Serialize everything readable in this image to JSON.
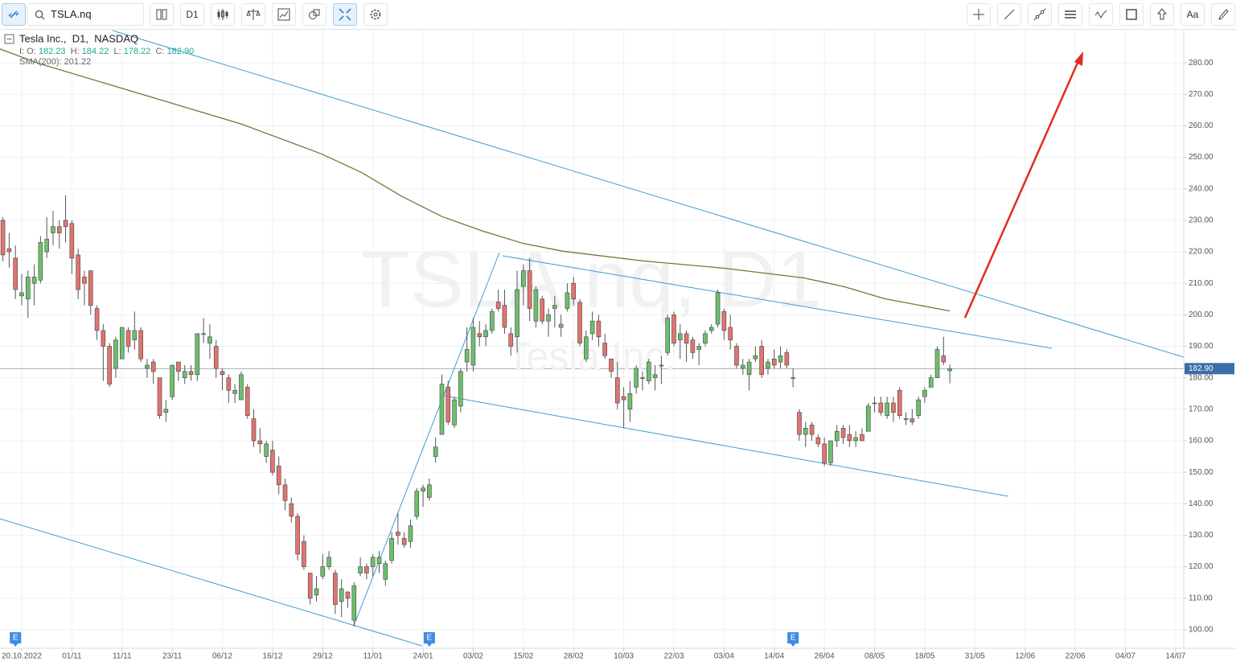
{
  "toolbar": {
    "symbol": "TSLA.nq",
    "timeframe": "D1",
    "text_tool": "Aa"
  },
  "legend": {
    "title": "Tesla Inc.,  D1,  NASDAQ",
    "o_label": "I: O:",
    "o": "182.23",
    "h_label": "H:",
    "h": "184.22",
    "l_label": "L:",
    "l": "178.22",
    "c_label": "C:",
    "c": "182.90",
    "sma_label": "SMA(200):",
    "sma": "201.22"
  },
  "watermark": {
    "symbol": "TSLA.nq, D1",
    "name": "Tesla Inc."
  },
  "chart_data": {
    "type": "candlestick",
    "up_color": "#6cbf6c",
    "down_color": "#e07470",
    "grid": true,
    "xlim": [
      -3.46,
      185.3
    ],
    "ylim": [
      94.1,
      290.5
    ],
    "xticks": [
      {
        "value": 0,
        "label": "20.10.2022"
      },
      {
        "value": 8,
        "label": "01/11"
      },
      {
        "value": 16,
        "label": "11/11"
      },
      {
        "value": 24,
        "label": "23/11"
      },
      {
        "value": 32,
        "label": "06/12"
      },
      {
        "value": 40,
        "label": "16/12"
      },
      {
        "value": 48,
        "label": "29/12"
      },
      {
        "value": 56,
        "label": "11/01"
      },
      {
        "value": 64,
        "label": "24/01"
      },
      {
        "value": 72,
        "label": "03/02"
      },
      {
        "value": 80,
        "label": "15/02"
      },
      {
        "value": 88,
        "label": "28/02"
      },
      {
        "value": 96,
        "label": "10/03"
      },
      {
        "value": 104,
        "label": "22/03"
      },
      {
        "value": 112,
        "label": "03/04"
      },
      {
        "value": 120,
        "label": "14/04"
      },
      {
        "value": 128,
        "label": "26/04"
      },
      {
        "value": 136,
        "label": "08/05"
      },
      {
        "value": 144,
        "label": "18/05"
      },
      {
        "value": 152,
        "label": "31/05"
      },
      {
        "value": 160,
        "label": "12/06"
      },
      {
        "value": 168,
        "label": "22/06"
      },
      {
        "value": 176,
        "label": "04/07"
      },
      {
        "value": 184,
        "label": "14/07"
      }
    ],
    "yticks": [
      {
        "value": 100,
        "label": "100.00"
      },
      {
        "value": 110,
        "label": "110.00"
      },
      {
        "value": 120,
        "label": "120.00"
      },
      {
        "value": 130,
        "label": "130.00"
      },
      {
        "value": 140,
        "label": "140.00"
      },
      {
        "value": 150,
        "label": "150.00"
      },
      {
        "value": 160,
        "label": "160.00"
      },
      {
        "value": 170,
        "label": "170.00"
      },
      {
        "value": 180,
        "label": "180.00"
      },
      {
        "value": 190,
        "label": "190.00"
      },
      {
        "value": 200,
        "label": "200.00"
      },
      {
        "value": 210,
        "label": "210.00"
      },
      {
        "value": 220,
        "label": "220.00"
      },
      {
        "value": 230,
        "label": "230.00"
      },
      {
        "value": 240,
        "label": "240.00"
      },
      {
        "value": 250,
        "label": "250.00"
      },
      {
        "value": 260,
        "label": "260.00"
      },
      {
        "value": 270,
        "label": "270.00"
      },
      {
        "value": 280,
        "label": "280.00"
      }
    ],
    "last_price": {
      "value": 182.9,
      "label": "182.90"
    },
    "x": [
      -3,
      -2,
      -1,
      0,
      1,
      2,
      3,
      4,
      5,
      6,
      7,
      8,
      9,
      10,
      11,
      12,
      13,
      14,
      15,
      16,
      17,
      18,
      19,
      20,
      21,
      22,
      23,
      24,
      25,
      26,
      27,
      28,
      29,
      30,
      31,
      32,
      33,
      34,
      35,
      36,
      37,
      38,
      39,
      40,
      41,
      42,
      43,
      44,
      45,
      46,
      47,
      48,
      49,
      50,
      51,
      52,
      53,
      54,
      55,
      56,
      57,
      58,
      59,
      60,
      61,
      62,
      63,
      64,
      65,
      66,
      67,
      68,
      69,
      70,
      71,
      72,
      73,
      74,
      75,
      76,
      77,
      78,
      79,
      80,
      81,
      82,
      83,
      84,
      85,
      86,
      87,
      88,
      89,
      90,
      91,
      92,
      93,
      94,
      95,
      96,
      97,
      98,
      99,
      100,
      101,
      102,
      103,
      104,
      105,
      106,
      107,
      108,
      109,
      110,
      111,
      112,
      113,
      114,
      115,
      116,
      117,
      118,
      119,
      120,
      121,
      122,
      123,
      124,
      125,
      126,
      127,
      128,
      129,
      130,
      131,
      132,
      133,
      134,
      135,
      136,
      137,
      138,
      139,
      140,
      141,
      142,
      143,
      144,
      145,
      146,
      147,
      148
    ],
    "ohlc": [
      [
        230,
        231,
        217,
        219
      ],
      [
        221,
        226,
        215,
        220
      ],
      [
        218,
        222,
        205,
        208
      ],
      [
        206,
        213,
        203,
        207
      ],
      [
        205,
        214,
        199,
        212
      ],
      [
        210,
        216,
        203,
        212
      ],
      [
        211,
        225,
        210,
        223
      ],
      [
        220,
        231,
        218,
        224
      ],
      [
        226,
        233,
        222,
        228
      ],
      [
        228,
        230,
        221,
        226
      ],
      [
        230,
        238,
        223,
        228
      ],
      [
        229,
        230,
        213,
        218
      ],
      [
        219,
        221,
        205,
        208
      ],
      [
        212,
        214,
        203,
        210
      ],
      [
        214,
        214,
        200,
        203
      ],
      [
        202,
        203,
        192,
        195
      ],
      [
        195,
        197,
        179,
        190
      ],
      [
        190,
        191,
        177,
        178
      ],
      [
        183,
        193,
        180,
        192
      ],
      [
        186,
        196,
        186,
        196
      ],
      [
        195,
        196,
        188,
        190
      ],
      [
        192,
        201,
        189,
        195
      ],
      [
        195,
        196,
        185,
        186
      ],
      [
        183,
        186,
        180,
        184
      ],
      [
        185,
        186,
        178,
        182
      ],
      [
        180,
        180,
        167,
        168
      ],
      [
        169,
        173,
        166,
        170
      ],
      [
        174,
        184,
        173,
        184
      ],
      [
        185,
        185,
        179,
        182
      ],
      [
        180,
        184,
        178,
        182
      ],
      [
        182,
        184,
        179,
        181
      ],
      [
        181,
        194,
        179,
        194
      ],
      [
        194,
        199,
        191,
        194
      ],
      [
        191,
        197,
        186,
        193
      ],
      [
        190,
        192,
        180,
        183
      ],
      [
        182,
        183,
        176,
        181
      ],
      [
        180,
        181,
        172,
        176
      ],
      [
        175,
        178,
        172,
        176
      ],
      [
        173,
        182,
        173,
        181
      ],
      [
        177,
        178,
        167,
        168
      ],
      [
        167,
        170,
        158,
        160
      ],
      [
        160,
        164,
        156,
        159
      ],
      [
        155,
        160,
        153,
        159
      ],
      [
        157,
        160,
        149,
        150
      ],
      [
        152,
        155,
        143,
        146
      ],
      [
        146,
        148,
        138,
        141
      ],
      [
        140,
        142,
        134,
        136
      ],
      [
        136,
        137,
        122,
        124
      ],
      [
        128,
        130,
        119,
        120
      ],
      [
        118,
        118,
        108,
        110
      ],
      [
        111,
        117,
        109,
        113
      ],
      [
        117,
        124,
        116,
        120
      ],
      [
        120,
        125,
        119,
        123
      ],
      [
        118,
        119,
        105,
        108
      ],
      [
        109,
        116,
        104,
        113
      ],
      [
        112,
        112,
        107,
        110
      ],
      [
        103,
        115,
        101,
        114
      ],
      [
        118,
        123,
        117,
        120
      ],
      [
        120,
        121,
        116,
        118
      ],
      [
        120,
        124,
        117,
        123
      ],
      [
        121,
        125,
        118,
        123
      ],
      [
        116,
        122,
        114,
        121
      ],
      [
        122,
        131,
        121,
        129
      ],
      [
        131,
        137,
        127,
        130
      ],
      [
        129,
        131,
        126,
        127
      ],
      [
        128,
        135,
        126,
        133
      ],
      [
        136,
        145,
        135,
        144
      ],
      [
        144,
        146,
        139,
        145
      ],
      [
        142,
        148,
        141,
        146
      ],
      [
        155,
        161,
        153,
        158
      ],
      [
        162,
        181,
        162,
        178
      ],
      [
        177,
        179,
        165,
        166
      ],
      [
        165,
        174,
        164,
        173
      ],
      [
        171,
        183,
        169,
        182
      ],
      [
        185,
        196,
        182,
        189
      ],
      [
        184,
        199,
        182,
        196
      ],
      [
        194,
        198,
        190,
        193
      ],
      [
        193,
        197,
        190,
        195
      ],
      [
        195,
        202,
        194,
        201
      ],
      [
        204,
        208,
        201,
        202
      ],
      [
        203,
        208,
        194,
        196
      ],
      [
        194,
        196,
        187,
        190
      ],
      [
        193,
        214,
        188,
        208
      ],
      [
        209,
        216,
        203,
        214
      ],
      [
        214,
        218,
        198,
        202
      ],
      [
        198,
        209,
        196,
        208
      ],
      [
        205,
        206,
        197,
        198
      ],
      [
        198,
        202,
        193,
        200
      ],
      [
        202,
        206,
        196,
        203
      ],
      [
        196,
        200,
        193,
        197
      ],
      [
        202,
        210,
        201,
        207
      ],
      [
        210,
        212,
        203,
        205
      ],
      [
        204,
        205,
        190,
        191
      ],
      [
        186,
        195,
        185,
        193
      ],
      [
        194,
        201,
        192,
        198
      ],
      [
        198,
        200,
        190,
        193
      ],
      [
        191,
        194,
        186,
        187
      ],
      [
        186,
        186,
        180,
        182
      ],
      [
        180,
        185,
        170,
        172
      ],
      [
        174,
        177,
        164,
        173
      ],
      [
        170,
        179,
        166,
        175
      ],
      [
        177,
        184,
        175,
        183
      ],
      [
        180,
        182,
        176,
        180
      ],
      [
        179,
        186,
        178,
        185
      ],
      [
        180,
        184,
        176,
        181
      ],
      [
        184,
        187,
        178,
        184
      ],
      [
        188,
        200,
        187,
        199
      ],
      [
        200,
        201,
        190,
        191
      ],
      [
        192,
        197,
        186,
        194
      ],
      [
        194,
        195,
        185,
        191
      ],
      [
        192,
        193,
        186,
        188
      ],
      [
        189,
        191,
        184,
        190
      ],
      [
        191,
        195,
        190,
        194
      ],
      [
        195,
        197,
        194,
        196
      ],
      [
        197,
        208,
        196,
        207
      ],
      [
        201,
        202,
        192,
        195
      ],
      [
        196,
        200,
        189,
        192
      ],
      [
        190,
        191,
        183,
        184
      ],
      [
        183,
        186,
        181,
        184
      ],
      [
        181,
        186,
        176,
        185
      ],
      [
        186,
        190,
        185,
        187
      ],
      [
        190,
        192,
        180,
        181
      ],
      [
        183,
        186,
        181,
        185
      ],
      [
        186,
        189,
        183,
        184
      ],
      [
        185,
        190,
        183,
        187
      ],
      [
        188,
        189,
        183,
        184
      ],
      [
        180,
        183,
        177,
        180
      ],
      [
        169,
        170,
        160,
        162
      ],
      [
        162,
        166,
        158,
        164
      ],
      [
        165,
        166,
        160,
        162
      ],
      [
        161,
        162,
        158,
        159
      ],
      [
        159,
        161,
        152,
        153
      ],
      [
        153,
        160,
        152,
        160
      ],
      [
        160,
        165,
        158,
        163
      ],
      [
        164,
        165,
        159,
        161
      ],
      [
        162,
        165,
        158,
        160
      ],
      [
        160,
        163,
        158,
        161
      ],
      [
        162,
        164,
        160,
        160
      ],
      [
        163,
        172,
        163,
        171
      ],
      [
        172,
        174,
        169,
        172
      ],
      [
        172,
        174,
        168,
        169
      ],
      [
        168,
        174,
        167,
        172
      ],
      [
        172,
        174,
        166,
        169
      ],
      [
        176,
        177,
        167,
        168
      ],
      [
        167,
        169,
        165,
        167
      ],
      [
        167,
        170,
        165,
        166
      ],
      [
        168,
        174,
        167,
        173
      ],
      [
        174,
        177,
        172,
        176
      ],
      [
        177,
        181,
        177,
        180
      ],
      [
        180,
        190,
        180,
        189
      ],
      [
        187,
        193,
        184,
        185
      ],
      [
        182.23,
        184.22,
        178.22,
        182.9
      ]
    ],
    "sma": {
      "name": "SMA(200)",
      "color": "#6b7a3c",
      "x": [
        -3.46,
        2.9,
        15.8,
        28.6,
        35,
        47.8,
        54.2,
        60.6,
        67,
        73.5,
        79.9,
        86.3,
        99.1,
        111.9,
        124.7,
        131.2,
        137.6,
        148
      ],
      "values": [
        284.4,
        279.7,
        272,
        264.4,
        260.6,
        251.1,
        245.2,
        237.6,
        231.2,
        226.6,
        222.7,
        220.2,
        217.1,
        214.8,
        211.7,
        208.9,
        205.1,
        201.22
      ]
    },
    "events": [
      {
        "x": -1,
        "label": "E"
      },
      {
        "x": 65,
        "label": "E"
      },
      {
        "x": 123,
        "label": "E"
      }
    ]
  }
}
